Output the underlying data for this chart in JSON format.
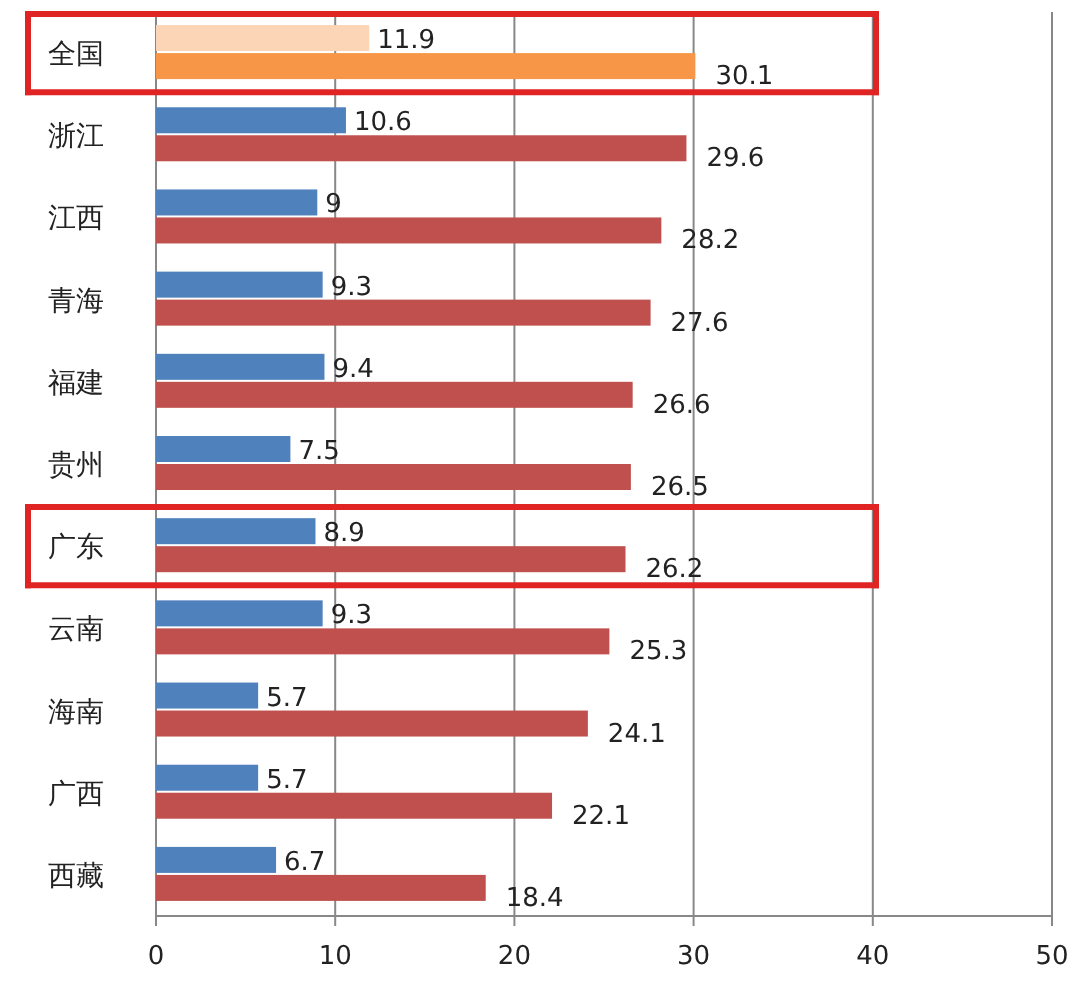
{
  "chart_data": {
    "type": "bar",
    "orientation": "horizontal",
    "categories": [
      "全国",
      "浙江",
      "江西",
      "青海",
      "福建",
      "贵州",
      "广东",
      "云南",
      "海南",
      "广西",
      "西藏"
    ],
    "series": [
      {
        "colors": [
          "#fbd5b5",
          "#4f81bd",
          "#4f81bd",
          "#4f81bd",
          "#4f81bd",
          "#4f81bd",
          "#4f81bd",
          "#4f81bd",
          "#4f81bd",
          "#4f81bd",
          "#4f81bd"
        ],
        "values": [
          11.9,
          10.6,
          9,
          9.3,
          9.4,
          7.5,
          8.9,
          9.3,
          5.7,
          5.7,
          6.7
        ]
      },
      {
        "colors": [
          "#f79646",
          "#c0504d",
          "#c0504d",
          "#c0504d",
          "#c0504d",
          "#c0504d",
          "#c0504d",
          "#c0504d",
          "#c0504d",
          "#c0504d",
          "#c0504d"
        ],
        "values": [
          30.1,
          29.6,
          28.2,
          27.6,
          26.6,
          26.5,
          26.2,
          25.3,
          24.1,
          22.1,
          18.4
        ]
      }
    ],
    "xlim": [
      0,
      50
    ],
    "xticks": [
      0,
      10,
      20,
      30,
      40,
      50
    ],
    "grid": "x",
    "data_labels": true
  }
}
